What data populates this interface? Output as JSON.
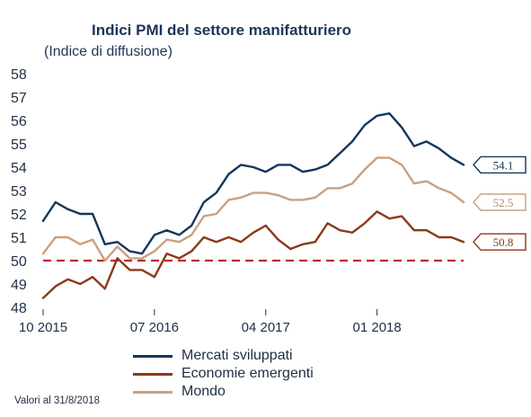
{
  "chart_data": {
    "type": "line",
    "title": "Indici PMI del settore manifatturiero",
    "subtitle": "(Indice di diffusione)",
    "xlabel": "",
    "ylabel": "",
    "ylim": [
      48,
      58
    ],
    "yticks": [
      "48",
      "49",
      "50",
      "51",
      "52",
      "53",
      "54",
      "55",
      "56",
      "57",
      "58"
    ],
    "xticks": [
      {
        "label": "10 2015",
        "index": 0
      },
      {
        "label": "07 2016",
        "index": 9
      },
      {
        "label": "04 2017",
        "index": 18
      },
      {
        "label": "01 2018",
        "index": 27
      }
    ],
    "x": [
      "10 2015",
      "11 2015",
      "12 2015",
      "01 2016",
      "02 2016",
      "03 2016",
      "04 2016",
      "05 2016",
      "06 2016",
      "07 2016",
      "08 2016",
      "09 2016",
      "10 2016",
      "11 2016",
      "12 2016",
      "01 2017",
      "02 2017",
      "03 2017",
      "04 2017",
      "05 2017",
      "06 2017",
      "07 2017",
      "08 2017",
      "09 2017",
      "10 2017",
      "11 2017",
      "12 2017",
      "01 2018",
      "02 2018",
      "03 2018",
      "04 2018",
      "05 2018",
      "06 2018",
      "07 2018",
      "08 2018"
    ],
    "reference_line": {
      "value": 50,
      "style": "dashed",
      "color": "#c0282d"
    },
    "legend_position": "bottom",
    "grid": false,
    "series": [
      {
        "name": "Mercati sviluppati",
        "color": "#14365c",
        "end_label": "54.1",
        "values": [
          51.7,
          52.5,
          52.2,
          52.0,
          52.0,
          50.7,
          50.8,
          50.4,
          50.3,
          51.1,
          51.3,
          51.1,
          51.5,
          52.5,
          52.9,
          53.7,
          54.1,
          54.0,
          53.8,
          54.1,
          54.1,
          53.8,
          53.9,
          54.1,
          54.6,
          55.1,
          55.8,
          56.2,
          56.3,
          55.7,
          54.9,
          55.1,
          54.8,
          54.4,
          54.1
        ]
      },
      {
        "name": "Economie emergenti",
        "color": "#8a3a1a",
        "end_label": "50.8",
        "values": [
          48.4,
          48.9,
          49.2,
          49.0,
          49.3,
          48.8,
          50.1,
          49.6,
          49.6,
          49.3,
          50.3,
          50.1,
          50.4,
          51.0,
          50.8,
          51.0,
          50.8,
          51.2,
          51.5,
          50.9,
          50.5,
          50.7,
          50.8,
          51.6,
          51.3,
          51.2,
          51.6,
          52.1,
          51.8,
          51.9,
          51.3,
          51.3,
          51.0,
          51.0,
          50.8
        ]
      },
      {
        "name": "Mondo",
        "color": "#c9a080",
        "end_label": "52.5",
        "values": [
          50.3,
          51.0,
          51.0,
          50.7,
          50.9,
          50.0,
          50.6,
          50.1,
          50.1,
          50.4,
          50.9,
          50.8,
          51.1,
          51.9,
          52.0,
          52.6,
          52.7,
          52.9,
          52.9,
          52.8,
          52.6,
          52.6,
          52.7,
          53.1,
          53.1,
          53.3,
          53.9,
          54.4,
          54.4,
          54.1,
          53.3,
          53.4,
          53.1,
          52.9,
          52.5
        ]
      }
    ],
    "footnote": "Valori al 31/8/2018"
  }
}
